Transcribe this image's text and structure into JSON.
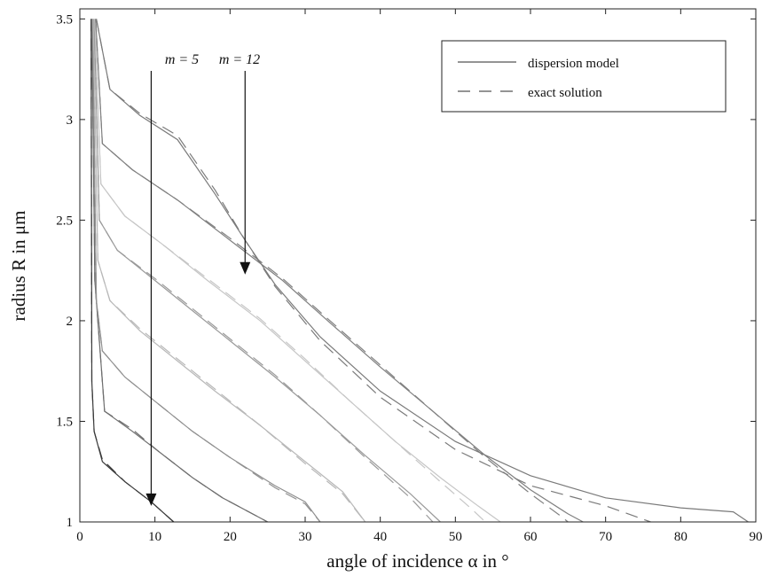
{
  "chart_data": {
    "type": "line",
    "xlabel": "angle of incidence α in °",
    "ylabel": "radius R in μm",
    "xlim": [
      0,
      90
    ],
    "ylim": [
      1,
      3.55
    ],
    "xticks": [
      0,
      10,
      20,
      30,
      40,
      50,
      60,
      70,
      80,
      90
    ],
    "yticks": [
      1,
      1.5,
      2,
      2.5,
      3,
      3.5
    ],
    "grid": false,
    "legend": {
      "position": "top-right",
      "entries": [
        {
          "label": "dispersion model",
          "style": "solid"
        },
        {
          "label": "exact solution",
          "style": "dashed"
        }
      ]
    },
    "annotations": [
      {
        "text": "m = 5",
        "arrow_to": [
          9.5,
          1.08
        ]
      },
      {
        "text": "m = 12",
        "arrow_to": [
          22,
          2.23
        ]
      }
    ],
    "series": [
      {
        "order": 5,
        "color": "#3a3a3a",
        "model": [
          [
            1.5,
            3.5
          ],
          [
            1.6,
            1.7
          ],
          [
            1.9,
            1.45
          ],
          [
            3,
            1.3
          ],
          [
            6,
            1.2
          ],
          [
            9.5,
            1.1
          ],
          [
            12.5,
            1.0
          ]
        ],
        "exact": [
          [
            1.5,
            3.5
          ],
          [
            1.6,
            1.7
          ],
          [
            1.9,
            1.45
          ],
          [
            3,
            1.31
          ],
          [
            6,
            1.2
          ],
          [
            9.5,
            1.1
          ],
          [
            12.5,
            1.0
          ]
        ]
      },
      {
        "order": 6,
        "color": "#6e6e6e",
        "model": [
          [
            1.6,
            3.5
          ],
          [
            2,
            2.2
          ],
          [
            3.3,
            1.55
          ],
          [
            7,
            1.45
          ],
          [
            10.5,
            1.35
          ],
          [
            15,
            1.22
          ],
          [
            19,
            1.12
          ],
          [
            25,
            1.0
          ]
        ],
        "exact": [
          [
            1.6,
            3.5
          ],
          [
            2,
            2.2
          ],
          [
            3.3,
            1.55
          ],
          [
            7,
            1.46
          ],
          [
            10.5,
            1.35
          ],
          [
            15,
            1.22
          ],
          [
            19,
            1.12
          ],
          [
            25,
            1.0
          ]
        ]
      },
      {
        "order": 7,
        "color": "#909090",
        "model": [
          [
            1.7,
            3.5
          ],
          [
            2.2,
            2.1
          ],
          [
            3,
            1.85
          ],
          [
            6,
            1.72
          ],
          [
            10,
            1.6
          ],
          [
            15,
            1.45
          ],
          [
            20,
            1.32
          ],
          [
            26,
            1.18
          ],
          [
            30,
            1.1
          ],
          [
            32,
            1.0
          ]
        ],
        "exact": [
          [
            1.7,
            3.5
          ],
          [
            2.2,
            2.1
          ],
          [
            3,
            1.85
          ],
          [
            6,
            1.72
          ],
          [
            10,
            1.6
          ],
          [
            15,
            1.45
          ],
          [
            20,
            1.32
          ],
          [
            26,
            1.17
          ],
          [
            30,
            1.09
          ],
          [
            32,
            1.0
          ]
        ]
      },
      {
        "order": 8,
        "color": "#b8b8b8",
        "model": [
          [
            1.8,
            3.5
          ],
          [
            2.4,
            2.3
          ],
          [
            4,
            2.1
          ],
          [
            8,
            1.95
          ],
          [
            13,
            1.8
          ],
          [
            18,
            1.65
          ],
          [
            24,
            1.48
          ],
          [
            30,
            1.3
          ],
          [
            35,
            1.15
          ],
          [
            38,
            1.0
          ]
        ],
        "exact": [
          [
            1.8,
            3.5
          ],
          [
            2.4,
            2.3
          ],
          [
            4,
            2.1
          ],
          [
            8,
            1.96
          ],
          [
            13,
            1.81
          ],
          [
            18,
            1.66
          ],
          [
            24,
            1.48
          ],
          [
            30,
            1.29
          ],
          [
            35,
            1.14
          ],
          [
            38,
            1.0
          ]
        ]
      },
      {
        "order": 9,
        "color": "#9a9a9a",
        "model": [
          [
            1.9,
            3.5
          ],
          [
            2.6,
            2.5
          ],
          [
            5,
            2.35
          ],
          [
            10,
            2.2
          ],
          [
            15,
            2.05
          ],
          [
            20,
            1.9
          ],
          [
            26,
            1.72
          ],
          [
            32,
            1.53
          ],
          [
            38,
            1.33
          ],
          [
            44,
            1.14
          ],
          [
            48,
            1.0
          ]
        ],
        "exact": [
          [
            1.9,
            3.5
          ],
          [
            2.6,
            2.5
          ],
          [
            5,
            2.35
          ],
          [
            10,
            2.21
          ],
          [
            15,
            2.06
          ],
          [
            20,
            1.91
          ],
          [
            26,
            1.73
          ],
          [
            32,
            1.53
          ],
          [
            38,
            1.32
          ],
          [
            44,
            1.12
          ],
          [
            47,
            1.0
          ]
        ]
      },
      {
        "order": 10,
        "color": "#c6c6c6",
        "model": [
          [
            2,
            3.5
          ],
          [
            2.8,
            2.68
          ],
          [
            6,
            2.52
          ],
          [
            11,
            2.38
          ],
          [
            17,
            2.2
          ],
          [
            24,
            2.0
          ],
          [
            30,
            1.8
          ],
          [
            36,
            1.6
          ],
          [
            42,
            1.4
          ],
          [
            48,
            1.22
          ],
          [
            53,
            1.08
          ],
          [
            56,
            1.0
          ]
        ],
        "exact": [
          [
            2,
            3.5
          ],
          [
            2.8,
            2.68
          ],
          [
            6,
            2.52
          ],
          [
            11,
            2.38
          ],
          [
            17,
            2.21
          ],
          [
            24,
            2.01
          ],
          [
            30,
            1.81
          ],
          [
            36,
            1.6
          ],
          [
            42,
            1.4
          ],
          [
            48,
            1.2
          ],
          [
            52,
            1.07
          ],
          [
            54,
            1.0
          ]
        ]
      },
      {
        "order": 11,
        "color": "#808080",
        "model": [
          [
            2.1,
            3.5
          ],
          [
            3,
            2.88
          ],
          [
            7,
            2.75
          ],
          [
            13,
            2.6
          ],
          [
            20,
            2.4
          ],
          [
            27,
            2.2
          ],
          [
            33,
            2.0
          ],
          [
            40,
            1.77
          ],
          [
            47,
            1.55
          ],
          [
            54,
            1.33
          ],
          [
            60,
            1.16
          ],
          [
            65,
            1.04
          ],
          [
            67,
            1.0
          ]
        ],
        "exact": [
          [
            2.1,
            3.5
          ],
          [
            3,
            2.88
          ],
          [
            7,
            2.75
          ],
          [
            13,
            2.6
          ],
          [
            20,
            2.41
          ],
          [
            27,
            2.21
          ],
          [
            33,
            2.01
          ],
          [
            40,
            1.78
          ],
          [
            47,
            1.55
          ],
          [
            54,
            1.32
          ],
          [
            60,
            1.14
          ],
          [
            64,
            1.03
          ],
          [
            65,
            1.0
          ]
        ]
      },
      {
        "order": 12,
        "color": "#7a7a7a",
        "model": [
          [
            2.2,
            3.5
          ],
          [
            4,
            3.15
          ],
          [
            8,
            3.02
          ],
          [
            13,
            2.9
          ],
          [
            18,
            2.63
          ],
          [
            22,
            2.4
          ],
          [
            26,
            2.18
          ],
          [
            32,
            1.92
          ],
          [
            40,
            1.65
          ],
          [
            50,
            1.4
          ],
          [
            60,
            1.23
          ],
          [
            70,
            1.12
          ],
          [
            80,
            1.07
          ],
          [
            87,
            1.05
          ],
          [
            89,
            1.0
          ]
        ],
        "exact": [
          [
            2.2,
            3.5
          ],
          [
            4,
            3.15
          ],
          [
            8,
            3.03
          ],
          [
            13,
            2.92
          ],
          [
            18,
            2.65
          ],
          [
            22,
            2.4
          ],
          [
            26,
            2.17
          ],
          [
            32,
            1.9
          ],
          [
            40,
            1.62
          ],
          [
            50,
            1.36
          ],
          [
            60,
            1.18
          ],
          [
            70,
            1.08
          ],
          [
            76,
            1.0
          ]
        ]
      }
    ]
  }
}
